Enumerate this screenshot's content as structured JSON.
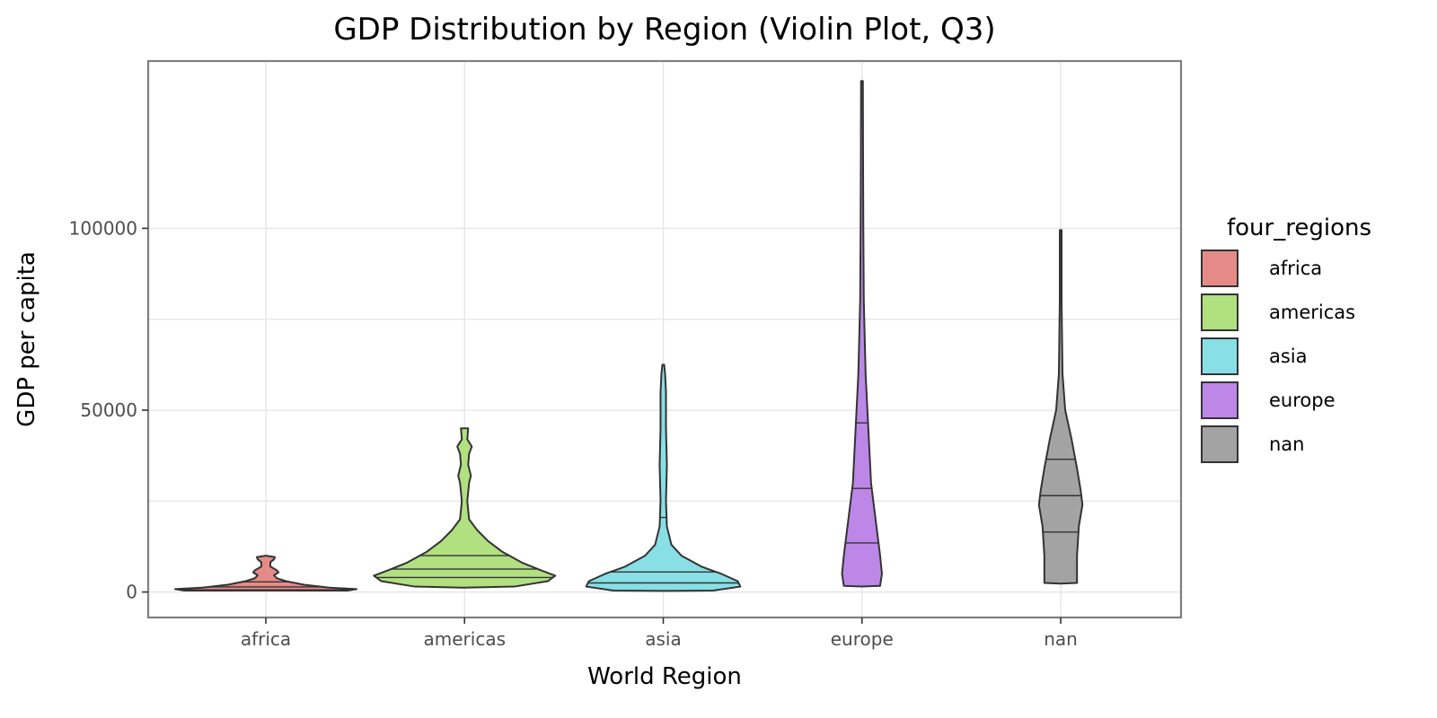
{
  "chart_data": {
    "type": "violin",
    "title": "GDP Distribution by Region (Violin Plot, Q3)",
    "xlabel": "World Region",
    "ylabel": "GDP per capita",
    "categories": [
      "africa",
      "americas",
      "asia",
      "europe",
      "nan"
    ],
    "ylim": [
      -7000,
      146000
    ],
    "yticks": [
      0,
      50000,
      100000
    ],
    "ytick_labels": [
      "0",
      "50000",
      "100000"
    ],
    "grid": true,
    "legend": {
      "title": "four_regions",
      "position": "right",
      "entries": [
        "africa",
        "americas",
        "asia",
        "europe",
        "nan"
      ]
    },
    "series": [
      {
        "category": "africa",
        "color": "#e58b87",
        "quantiles": [
          600,
          1400,
          2800
        ],
        "density": [
          [
            400,
            0.9
          ],
          [
            800,
            1.0
          ],
          [
            1200,
            0.7
          ],
          [
            2000,
            0.42
          ],
          [
            3000,
            0.22
          ],
          [
            3800,
            0.12
          ],
          [
            4600,
            0.09
          ],
          [
            5400,
            0.14
          ],
          [
            6000,
            0.12
          ],
          [
            7000,
            0.05
          ],
          [
            8200,
            0.05
          ],
          [
            9000,
            0.09
          ],
          [
            9600,
            0.1
          ],
          [
            10000,
            0.0
          ]
        ]
      },
      {
        "category": "americas",
        "color": "#b1e081",
        "quantiles": [
          4000,
          6300,
          10000
        ],
        "density": [
          [
            1200,
            0.0
          ],
          [
            1500,
            0.55
          ],
          [
            3000,
            0.92
          ],
          [
            4500,
            1.0
          ],
          [
            6000,
            0.84
          ],
          [
            8000,
            0.64
          ],
          [
            11000,
            0.42
          ],
          [
            14000,
            0.26
          ],
          [
            17000,
            0.14
          ],
          [
            20000,
            0.05
          ],
          [
            25000,
            0.03
          ],
          [
            30000,
            0.05
          ],
          [
            32000,
            0.07
          ],
          [
            35000,
            0.04
          ],
          [
            38000,
            0.05
          ],
          [
            40000,
            0.08
          ],
          [
            42000,
            0.03
          ],
          [
            45000,
            0.04
          ]
        ]
      },
      {
        "category": "asia",
        "color": "#88dfe5",
        "quantiles": [
          2500,
          5500,
          20500
        ],
        "density": [
          [
            300,
            0.0
          ],
          [
            400,
            0.55
          ],
          [
            1500,
            0.85
          ],
          [
            3000,
            0.82
          ],
          [
            5000,
            0.64
          ],
          [
            7000,
            0.42
          ],
          [
            10000,
            0.2
          ],
          [
            13000,
            0.09
          ],
          [
            18000,
            0.04
          ],
          [
            25000,
            0.03
          ],
          [
            35000,
            0.04
          ],
          [
            45000,
            0.03
          ],
          [
            55000,
            0.03
          ],
          [
            60000,
            0.02
          ],
          [
            62500,
            0.01
          ]
        ]
      },
      {
        "category": "europe",
        "color": "#bd87e8",
        "quantiles": [
          13500,
          28500,
          46500
        ],
        "density": [
          [
            1500,
            0.0
          ],
          [
            1700,
            0.2
          ],
          [
            5000,
            0.22
          ],
          [
            10000,
            0.2
          ],
          [
            20000,
            0.15
          ],
          [
            30000,
            0.1
          ],
          [
            45000,
            0.07
          ],
          [
            60000,
            0.04
          ],
          [
            80000,
            0.02
          ],
          [
            100000,
            0.015
          ],
          [
            120000,
            0.012
          ],
          [
            140500,
            0.01
          ]
        ]
      },
      {
        "category": "nan",
        "color": "#a3a3a3",
        "quantiles": [
          16500,
          26500,
          36500
        ],
        "density": [
          [
            2300,
            0.0
          ],
          [
            2500,
            0.18
          ],
          [
            10000,
            0.18
          ],
          [
            18000,
            0.2
          ],
          [
            24000,
            0.24
          ],
          [
            28000,
            0.22
          ],
          [
            34000,
            0.18
          ],
          [
            42000,
            0.12
          ],
          [
            50000,
            0.05
          ],
          [
            60000,
            0.02
          ],
          [
            80000,
            0.01
          ],
          [
            99500,
            0.01
          ]
        ]
      }
    ]
  }
}
